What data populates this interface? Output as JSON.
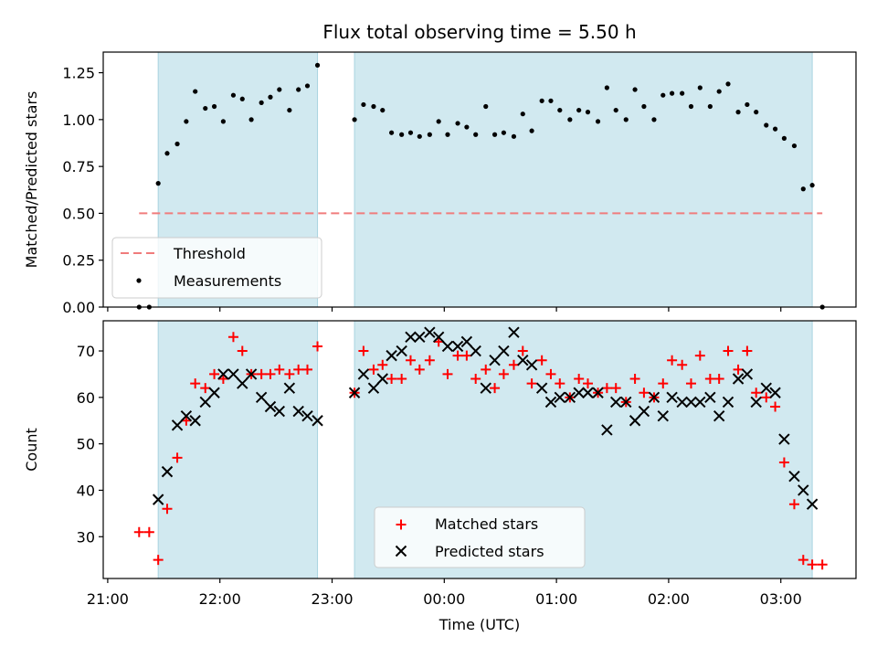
{
  "title": "Flux total observing time = 5.50 h",
  "colors": {
    "band_fill": "#d1e9f0",
    "band_edge": "#a9d4e0",
    "threshold": "#f07c7c",
    "measurement": "#000000",
    "matched": "#ff0000",
    "predicted": "#000000"
  },
  "chart_data": [
    {
      "name": "ratio-panel",
      "type": "scatter",
      "title": "Flux total observing time = 5.50 h",
      "xlabel": "",
      "ylabel": "Matched/Predicted stars",
      "xlim": [
        20.96,
        27.67
      ],
      "ylim": [
        0,
        1.36
      ],
      "yticks": [
        0,
        0.25,
        0.5,
        0.75,
        1.0,
        1.25
      ],
      "ytick_labels": [
        "0.00",
        "0.25",
        "0.50",
        "0.75",
        "1.00",
        "1.25",
        ""
      ],
      "xticks": [
        21,
        22,
        23,
        24,
        25,
        26,
        27
      ],
      "xtick_labels": [
        "",
        "",
        "",
        "",
        "",
        "",
        ""
      ],
      "bands": [
        [
          21.45,
          22.87
        ],
        [
          23.2,
          27.28
        ]
      ],
      "legend": {
        "position": "lower-left",
        "entries": [
          "Threshold",
          "Measurements"
        ]
      },
      "threshold": {
        "name": "Threshold",
        "x": [
          21.28,
          27.37
        ],
        "y": 0.5
      },
      "measurements": {
        "name": "Measurements",
        "x": [
          21.28,
          21.37,
          21.45,
          21.53,
          21.62,
          21.7,
          21.78,
          21.87,
          21.95,
          22.03,
          22.12,
          22.2,
          22.28,
          22.37,
          22.45,
          22.53,
          22.62,
          22.7,
          22.78,
          22.87,
          23.2,
          23.28,
          23.37,
          23.45,
          23.53,
          23.62,
          23.7,
          23.78,
          23.87,
          23.95,
          24.03,
          24.12,
          24.2,
          24.28,
          24.37,
          24.45,
          24.53,
          24.62,
          24.7,
          24.78,
          24.87,
          24.95,
          25.03,
          25.12,
          25.2,
          25.28,
          25.37,
          25.45,
          25.53,
          25.62,
          25.7,
          25.78,
          25.87,
          25.95,
          26.03,
          26.12,
          26.2,
          26.28,
          26.37,
          26.45,
          26.53,
          26.62,
          26.7,
          26.78,
          26.87,
          26.95,
          27.03,
          27.12,
          27.2,
          27.28,
          27.37
        ],
        "y": [
          0.0,
          0.0,
          0.66,
          0.82,
          0.87,
          0.99,
          1.15,
          1.06,
          1.07,
          0.99,
          1.13,
          1.11,
          1.0,
          1.09,
          1.12,
          1.16,
          1.05,
          1.16,
          1.18,
          1.29,
          1.0,
          1.08,
          1.07,
          1.05,
          0.93,
          0.92,
          0.93,
          0.91,
          0.92,
          0.99,
          0.92,
          0.98,
          0.96,
          0.92,
          1.07,
          0.92,
          0.93,
          0.91,
          1.03,
          0.94,
          1.1,
          1.1,
          1.05,
          1.0,
          1.05,
          1.04,
          0.99,
          1.17,
          1.05,
          1.0,
          1.16,
          1.07,
          1.0,
          1.13,
          1.14,
          1.14,
          1.07,
          1.17,
          1.07,
          1.15,
          1.19,
          1.04,
          1.08,
          1.04,
          0.97,
          0.95,
          0.9,
          0.86,
          0.63,
          0.65,
          0.0
        ]
      }
    },
    {
      "name": "count-panel",
      "type": "scatter",
      "xlabel": "Time (UTC)",
      "ylabel": "Count",
      "xlim": [
        20.96,
        27.67
      ],
      "ylim": [
        21,
        76.5
      ],
      "yticks": [
        30,
        40,
        50,
        60,
        70
      ],
      "ytick_labels": [
        "30",
        "40",
        "50",
        "60",
        "70"
      ],
      "xticks": [
        21,
        22,
        23,
        24,
        25,
        26,
        27
      ],
      "xtick_labels": [
        "21:00",
        "22:00",
        "23:00",
        "00:00",
        "01:00",
        "02:00",
        "03:00"
      ],
      "bands": [
        [
          21.45,
          22.87
        ],
        [
          23.2,
          27.28
        ]
      ],
      "legend": {
        "position": "lower-center",
        "entries": [
          "Matched stars",
          "Predicted stars"
        ]
      },
      "matched": {
        "name": "Matched stars",
        "x": [
          21.28,
          21.37,
          21.45,
          21.53,
          21.62,
          21.7,
          21.78,
          21.87,
          21.95,
          22.03,
          22.12,
          22.2,
          22.28,
          22.37,
          22.45,
          22.53,
          22.62,
          22.7,
          22.78,
          22.87,
          23.2,
          23.28,
          23.37,
          23.45,
          23.53,
          23.62,
          23.7,
          23.78,
          23.87,
          23.95,
          24.03,
          24.12,
          24.2,
          24.28,
          24.37,
          24.45,
          24.53,
          24.62,
          24.7,
          24.78,
          24.87,
          24.95,
          25.03,
          25.12,
          25.2,
          25.28,
          25.37,
          25.45,
          25.53,
          25.62,
          25.7,
          25.78,
          25.87,
          25.95,
          26.03,
          26.12,
          26.2,
          26.28,
          26.37,
          26.45,
          26.53,
          26.62,
          26.7,
          26.78,
          26.87,
          26.95,
          27.03,
          27.12,
          27.2,
          27.28,
          27.37
        ],
        "y": [
          31,
          31,
          25,
          36,
          47,
          55,
          63,
          62,
          65,
          64,
          73,
          70,
          65,
          65,
          65,
          66,
          65,
          66,
          66,
          71,
          61,
          70,
          66,
          67,
          64,
          64,
          68,
          66,
          68,
          72,
          65,
          69,
          69,
          64,
          66,
          62,
          65,
          67,
          70,
          63,
          68,
          65,
          63,
          60,
          64,
          63,
          61,
          62,
          62,
          59,
          64,
          61,
          60,
          63,
          68,
          67,
          63,
          69,
          64,
          64,
          70,
          66,
          70,
          61,
          60,
          58,
          46,
          37,
          25,
          24,
          24
        ]
      },
      "predicted": {
        "name": "Predicted stars",
        "x": [
          21.45,
          21.53,
          21.62,
          21.7,
          21.78,
          21.87,
          21.95,
          22.03,
          22.12,
          22.2,
          22.28,
          22.37,
          22.45,
          22.53,
          22.62,
          22.7,
          22.78,
          22.87,
          23.2,
          23.28,
          23.37,
          23.45,
          23.53,
          23.62,
          23.7,
          23.78,
          23.87,
          23.95,
          24.03,
          24.12,
          24.2,
          24.28,
          24.37,
          24.45,
          24.53,
          24.62,
          24.7,
          24.78,
          24.87,
          24.95,
          25.03,
          25.12,
          25.2,
          25.28,
          25.37,
          25.45,
          25.53,
          25.62,
          25.7,
          25.78,
          25.87,
          25.95,
          26.03,
          26.12,
          26.2,
          26.28,
          26.37,
          26.45,
          26.53,
          26.62,
          26.7,
          26.78,
          26.87,
          26.95,
          27.03,
          27.12,
          27.2,
          27.28
        ],
        "y": [
          38,
          44,
          54,
          56,
          55,
          59,
          61,
          65,
          65,
          63,
          65,
          60,
          58,
          57,
          62,
          57,
          56,
          55,
          61,
          65,
          62,
          64,
          69,
          70,
          73,
          73,
          74,
          73,
          71,
          71,
          72,
          70,
          62,
          68,
          70,
          74,
          68,
          67,
          62,
          59,
          60,
          60,
          61,
          61,
          61,
          53,
          59,
          59,
          55,
          57,
          60,
          56,
          60,
          59,
          59,
          59,
          60,
          56,
          59,
          64,
          65,
          59,
          62,
          61,
          51,
          43,
          40,
          37
        ]
      }
    }
  ]
}
